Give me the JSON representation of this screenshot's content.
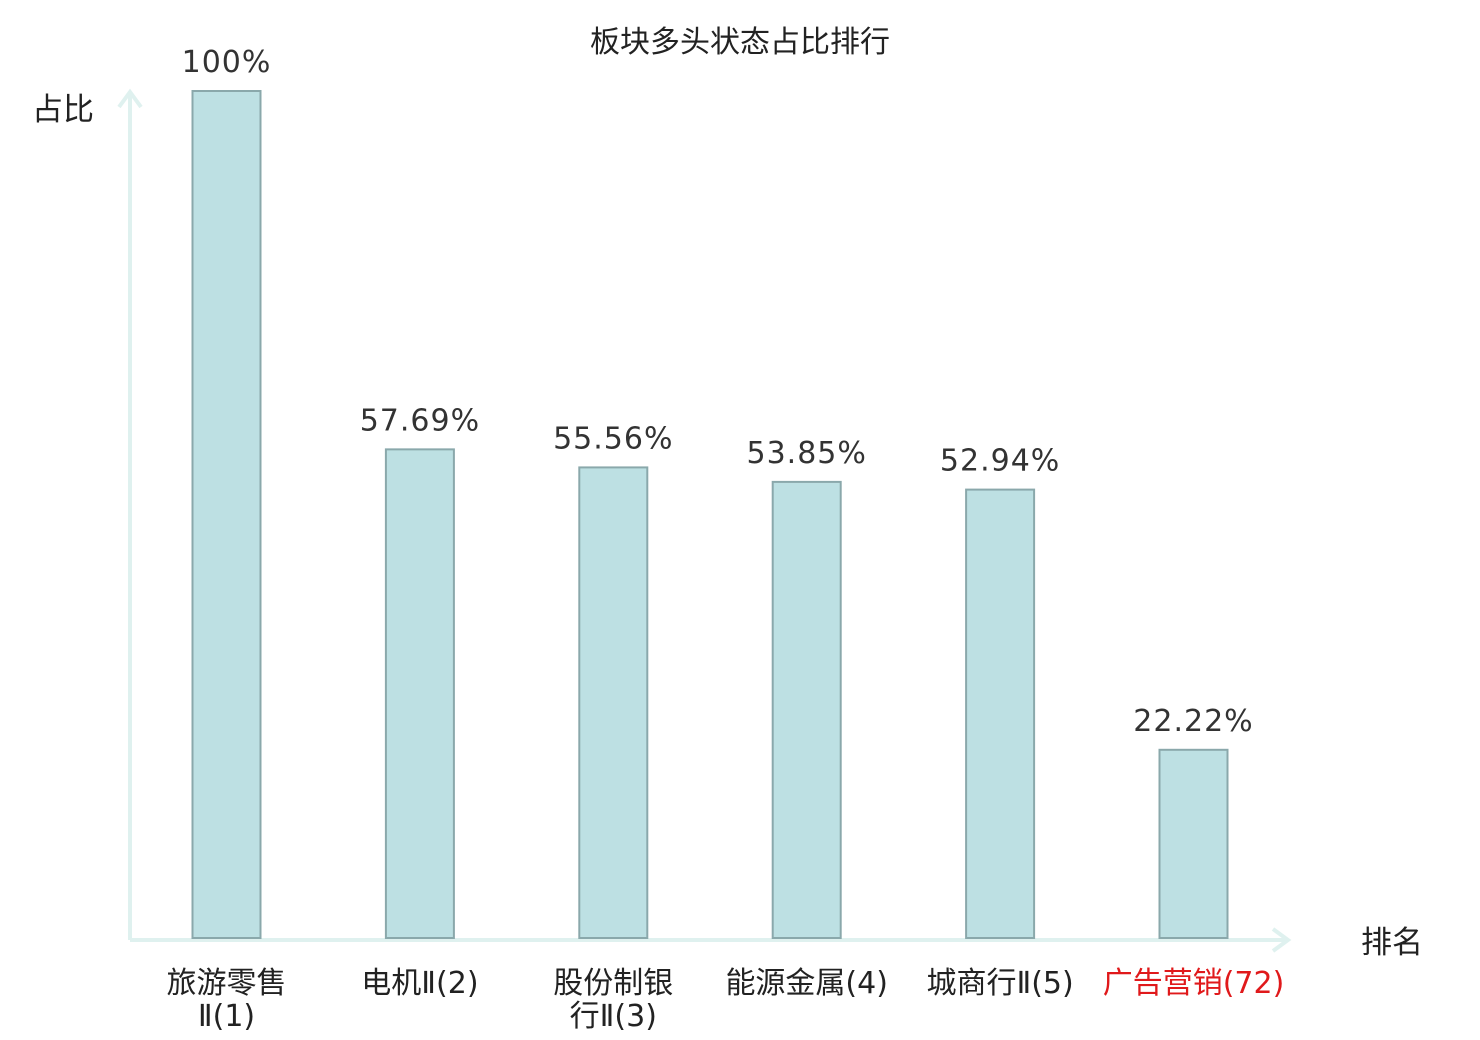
{
  "chart_data": {
    "type": "bar",
    "title": "板块多头状态占比排行",
    "ylabel": "占比",
    "xlabel": "排名",
    "ylim": [
      0,
      100
    ],
    "grid": false,
    "categories": [
      {
        "lines": [
          "旅游零售",
          "Ⅱ(1)"
        ],
        "highlight": false
      },
      {
        "lines": [
          "电机Ⅱ(2)"
        ],
        "highlight": false
      },
      {
        "lines": [
          "股份制银",
          "行Ⅱ(3)"
        ],
        "highlight": false
      },
      {
        "lines": [
          "能源金属(4)"
        ],
        "highlight": false
      },
      {
        "lines": [
          "城商行Ⅱ(5)"
        ],
        "highlight": false
      },
      {
        "lines": [
          "广告营销(72)"
        ],
        "highlight": true
      }
    ],
    "values": [
      100,
      57.69,
      55.56,
      53.85,
      52.94,
      22.22
    ],
    "value_labels": [
      "100%",
      "57.69%",
      "55.56%",
      "53.85%",
      "52.94%",
      "22.22%"
    ]
  },
  "colors": {
    "bar_fill": "#bde0e3",
    "bar_stroke": "#8aa8ab",
    "axis": "#dff1ef",
    "text": "#222222",
    "value_text": "#333333",
    "highlight": "#e0191b"
  }
}
